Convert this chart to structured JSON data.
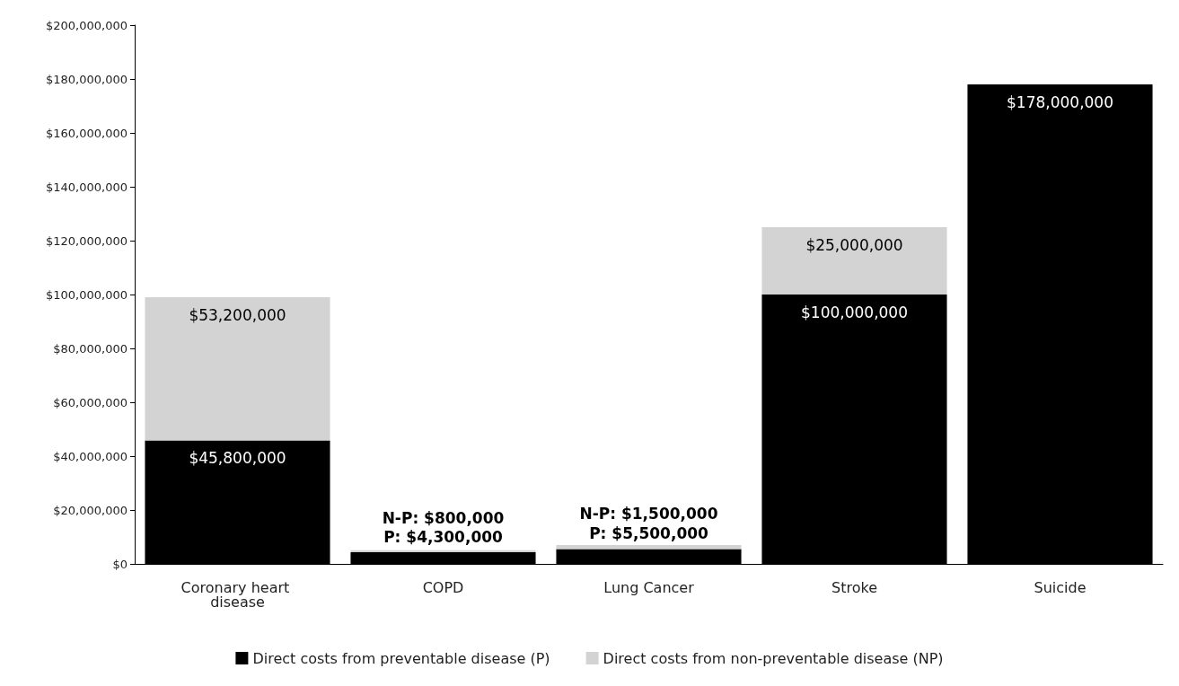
{
  "chart_data": {
    "type": "bar",
    "stacked": true,
    "categories": [
      "Coronary heart disease",
      "COPD",
      "Lung Cancer",
      "Stroke",
      "Suicide"
    ],
    "series": [
      {
        "name": "Direct costs from preventable disease (P)",
        "color": "#000000",
        "values": [
          45800000,
          4300000,
          5500000,
          100000000,
          178000000
        ],
        "value_labels": [
          "$45,800,000",
          "P: $4,300,000",
          "P: $5,500,000",
          "$100,000,000",
          "$178,000,000"
        ]
      },
      {
        "name": "Direct costs from non-preventable disease (NP)",
        "color": "#d3d3d3",
        "values": [
          53200000,
          800000,
          1500000,
          25000000,
          null
        ],
        "value_labels": [
          "$53,200,000",
          "N-P: $800,000",
          "N-P: $1,500,000",
          "$25,000,000",
          null
        ]
      }
    ],
    "ylim": [
      0,
      200000000
    ],
    "yticks": [
      {
        "value": 0,
        "label": "$0"
      },
      {
        "value": 20000000,
        "label": "$20,000,000"
      },
      {
        "value": 40000000,
        "label": "$40,000,000"
      },
      {
        "value": 60000000,
        "label": "$60,000,000"
      },
      {
        "value": 80000000,
        "label": "$80,000,000"
      },
      {
        "value": 100000000,
        "label": "$100,000,000"
      },
      {
        "value": 120000000,
        "label": "$120,000,000"
      },
      {
        "value": 140000000,
        "label": "$140,000,000"
      },
      {
        "value": 160000000,
        "label": "$160,000,000"
      },
      {
        "value": 180000000,
        "label": "$180,000,000"
      },
      {
        "value": 200000000,
        "label": "$200,000,000"
      }
    ],
    "grid": false,
    "legend": "bottom"
  }
}
